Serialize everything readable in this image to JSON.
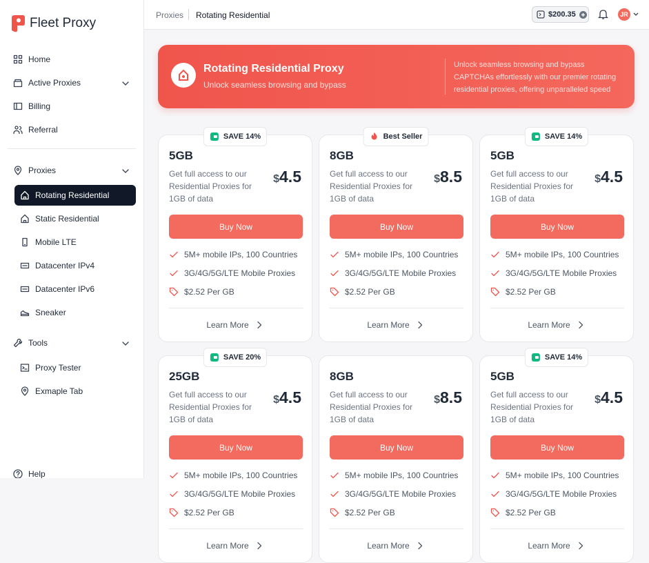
{
  "brand": "Fleet Proxy",
  "nav": {
    "main": [
      "Home",
      "Active Proxies",
      "Billing",
      "Referral"
    ],
    "proxies": {
      "label": "Proxies",
      "items": [
        "Rotating Residential",
        "Static Residential",
        "Mobile LTE",
        "Datacenter IPv4",
        "Datacenter IPv6",
        "Sneaker"
      ]
    },
    "tools": {
      "label": "Tools",
      "items": [
        "Proxy Tester",
        "Exmaple Tab"
      ]
    },
    "help": "Help"
  },
  "breadcrumb": [
    "Proxies",
    "Rotating Residential"
  ],
  "balance": "$200.35",
  "avatar": "JR",
  "hero": {
    "title": "Rotating Residential Proxy",
    "subtitle": "Unlock seamless browsing and bypass",
    "description": "Unlock seamless browsing and bypass CAPTCHAs effortlessly with our premier rotating residential proxies, offering unparalleled speed"
  },
  "cards": [
    {
      "badge": "SAVE 14%",
      "size": "5GB",
      "description": "Get full access to our Residential Proxies for 1GB of data",
      "currency": "$",
      "price": 4.5,
      "button": "Buy Now",
      "features": [
        "5M+ mobile IPs, 100 Countries",
        "3G/4G/5G/LTE Mobile Proxies",
        "$2.52 Per GB"
      ],
      "link": "Learn More"
    },
    {
      "badge": "Best Seller",
      "size": "8GB",
      "description": "Get full access to our Residential Proxies for 1GB of data",
      "currency": "$",
      "price": 8.5,
      "button": "Buy Now",
      "features": [
        "5M+ mobile IPs, 100 Countries",
        "3G/4G/5G/LTE Mobile Proxies",
        "$2.52 Per GB"
      ],
      "link": "Learn More"
    },
    {
      "badge": "SAVE 14%",
      "size": "5GB",
      "description": "Get full access to our Residential Proxies for 1GB of data",
      "currency": "$",
      "price": 4.5,
      "button": "Buy Now",
      "features": [
        "5M+ mobile IPs, 100 Countries",
        "3G/4G/5G/LTE Mobile Proxies",
        "$2.52 Per GB"
      ],
      "link": "Learn More"
    },
    {
      "badge": "SAVE 20%",
      "size": "25GB",
      "description": "Get full access to our Residential Proxies for 1GB of data",
      "currency": "$",
      "price": 4.5,
      "button": "Buy Now",
      "features": [
        "5M+ mobile IPs, 100 Countries",
        "3G/4G/5G/LTE Mobile Proxies",
        "$2.52 Per GB"
      ],
      "link": "Learn More"
    },
    {
      "size": "8GB",
      "description": "Get full access to our Residential Proxies for 1GB of data",
      "currency": "$",
      "price": 8.5,
      "button": "Buy Now",
      "features": [
        "5M+ mobile IPs, 100 Countries",
        "3G/4G/5G/LTE Mobile Proxies",
        "$2.52 Per GB"
      ],
      "link": "Learn More"
    },
    {
      "badge": "SAVE 14%",
      "size": "5GB",
      "description": "Get full access to our Residential Proxies for 1GB of data",
      "currency": "$",
      "price": 4.5,
      "button": "Buy Now",
      "features": [
        "5M+ mobile IPs, 100 Countries",
        "3G/4G/5G/LTE Mobile Proxies",
        "$2.52 Per GB"
      ],
      "link": "Learn More"
    }
  ]
}
